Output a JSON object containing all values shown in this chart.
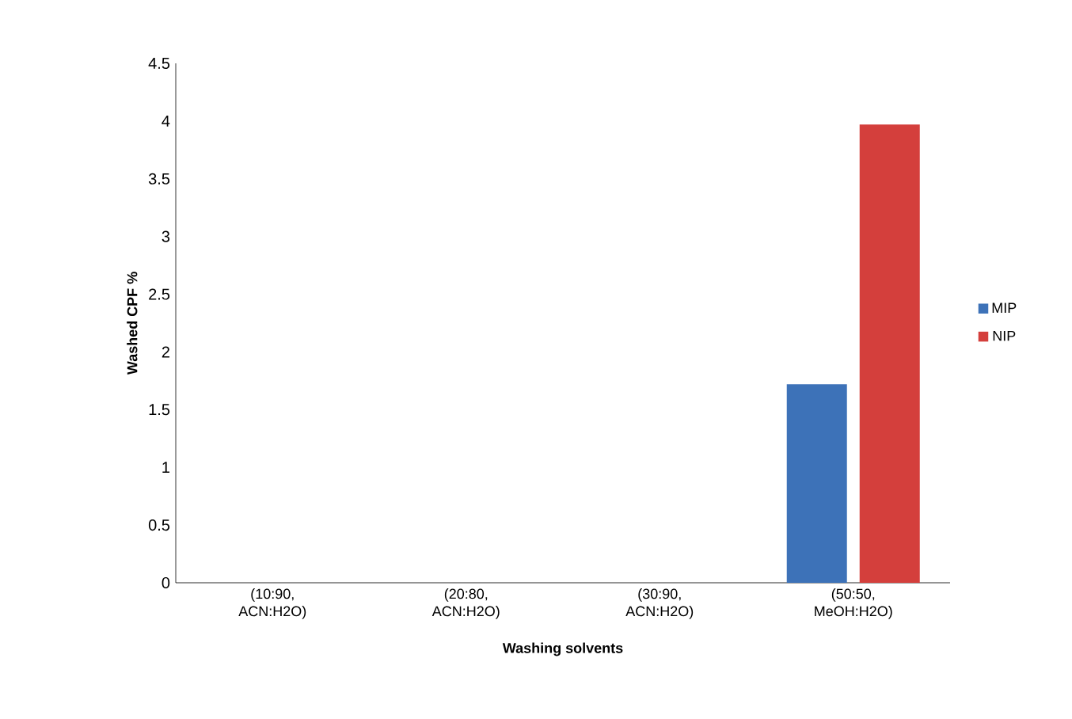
{
  "chart_data": {
    "type": "bar",
    "xlabel": "Washing solvents",
    "ylabel": "Washed CPF %",
    "categories": [
      "(10:90, ACN:H2O)",
      "(20:80, ACN:H2O)",
      "(30:90, ACN:H2O)",
      "(50:50, MeOH:H2O)"
    ],
    "series": [
      {
        "name": "MIP",
        "color": "#3d72b8",
        "values": [
          0,
          0,
          0,
          1.72
        ]
      },
      {
        "name": "NIP",
        "color": "#d43f3c",
        "values": [
          0,
          0,
          0,
          3.97
        ]
      }
    ],
    "ylim": [
      0,
      4.5
    ],
    "yticks": [
      0,
      0.5,
      1,
      1.5,
      2,
      2.5,
      3,
      3.5,
      4,
      4.5
    ],
    "grid": false,
    "legend": "right"
  }
}
